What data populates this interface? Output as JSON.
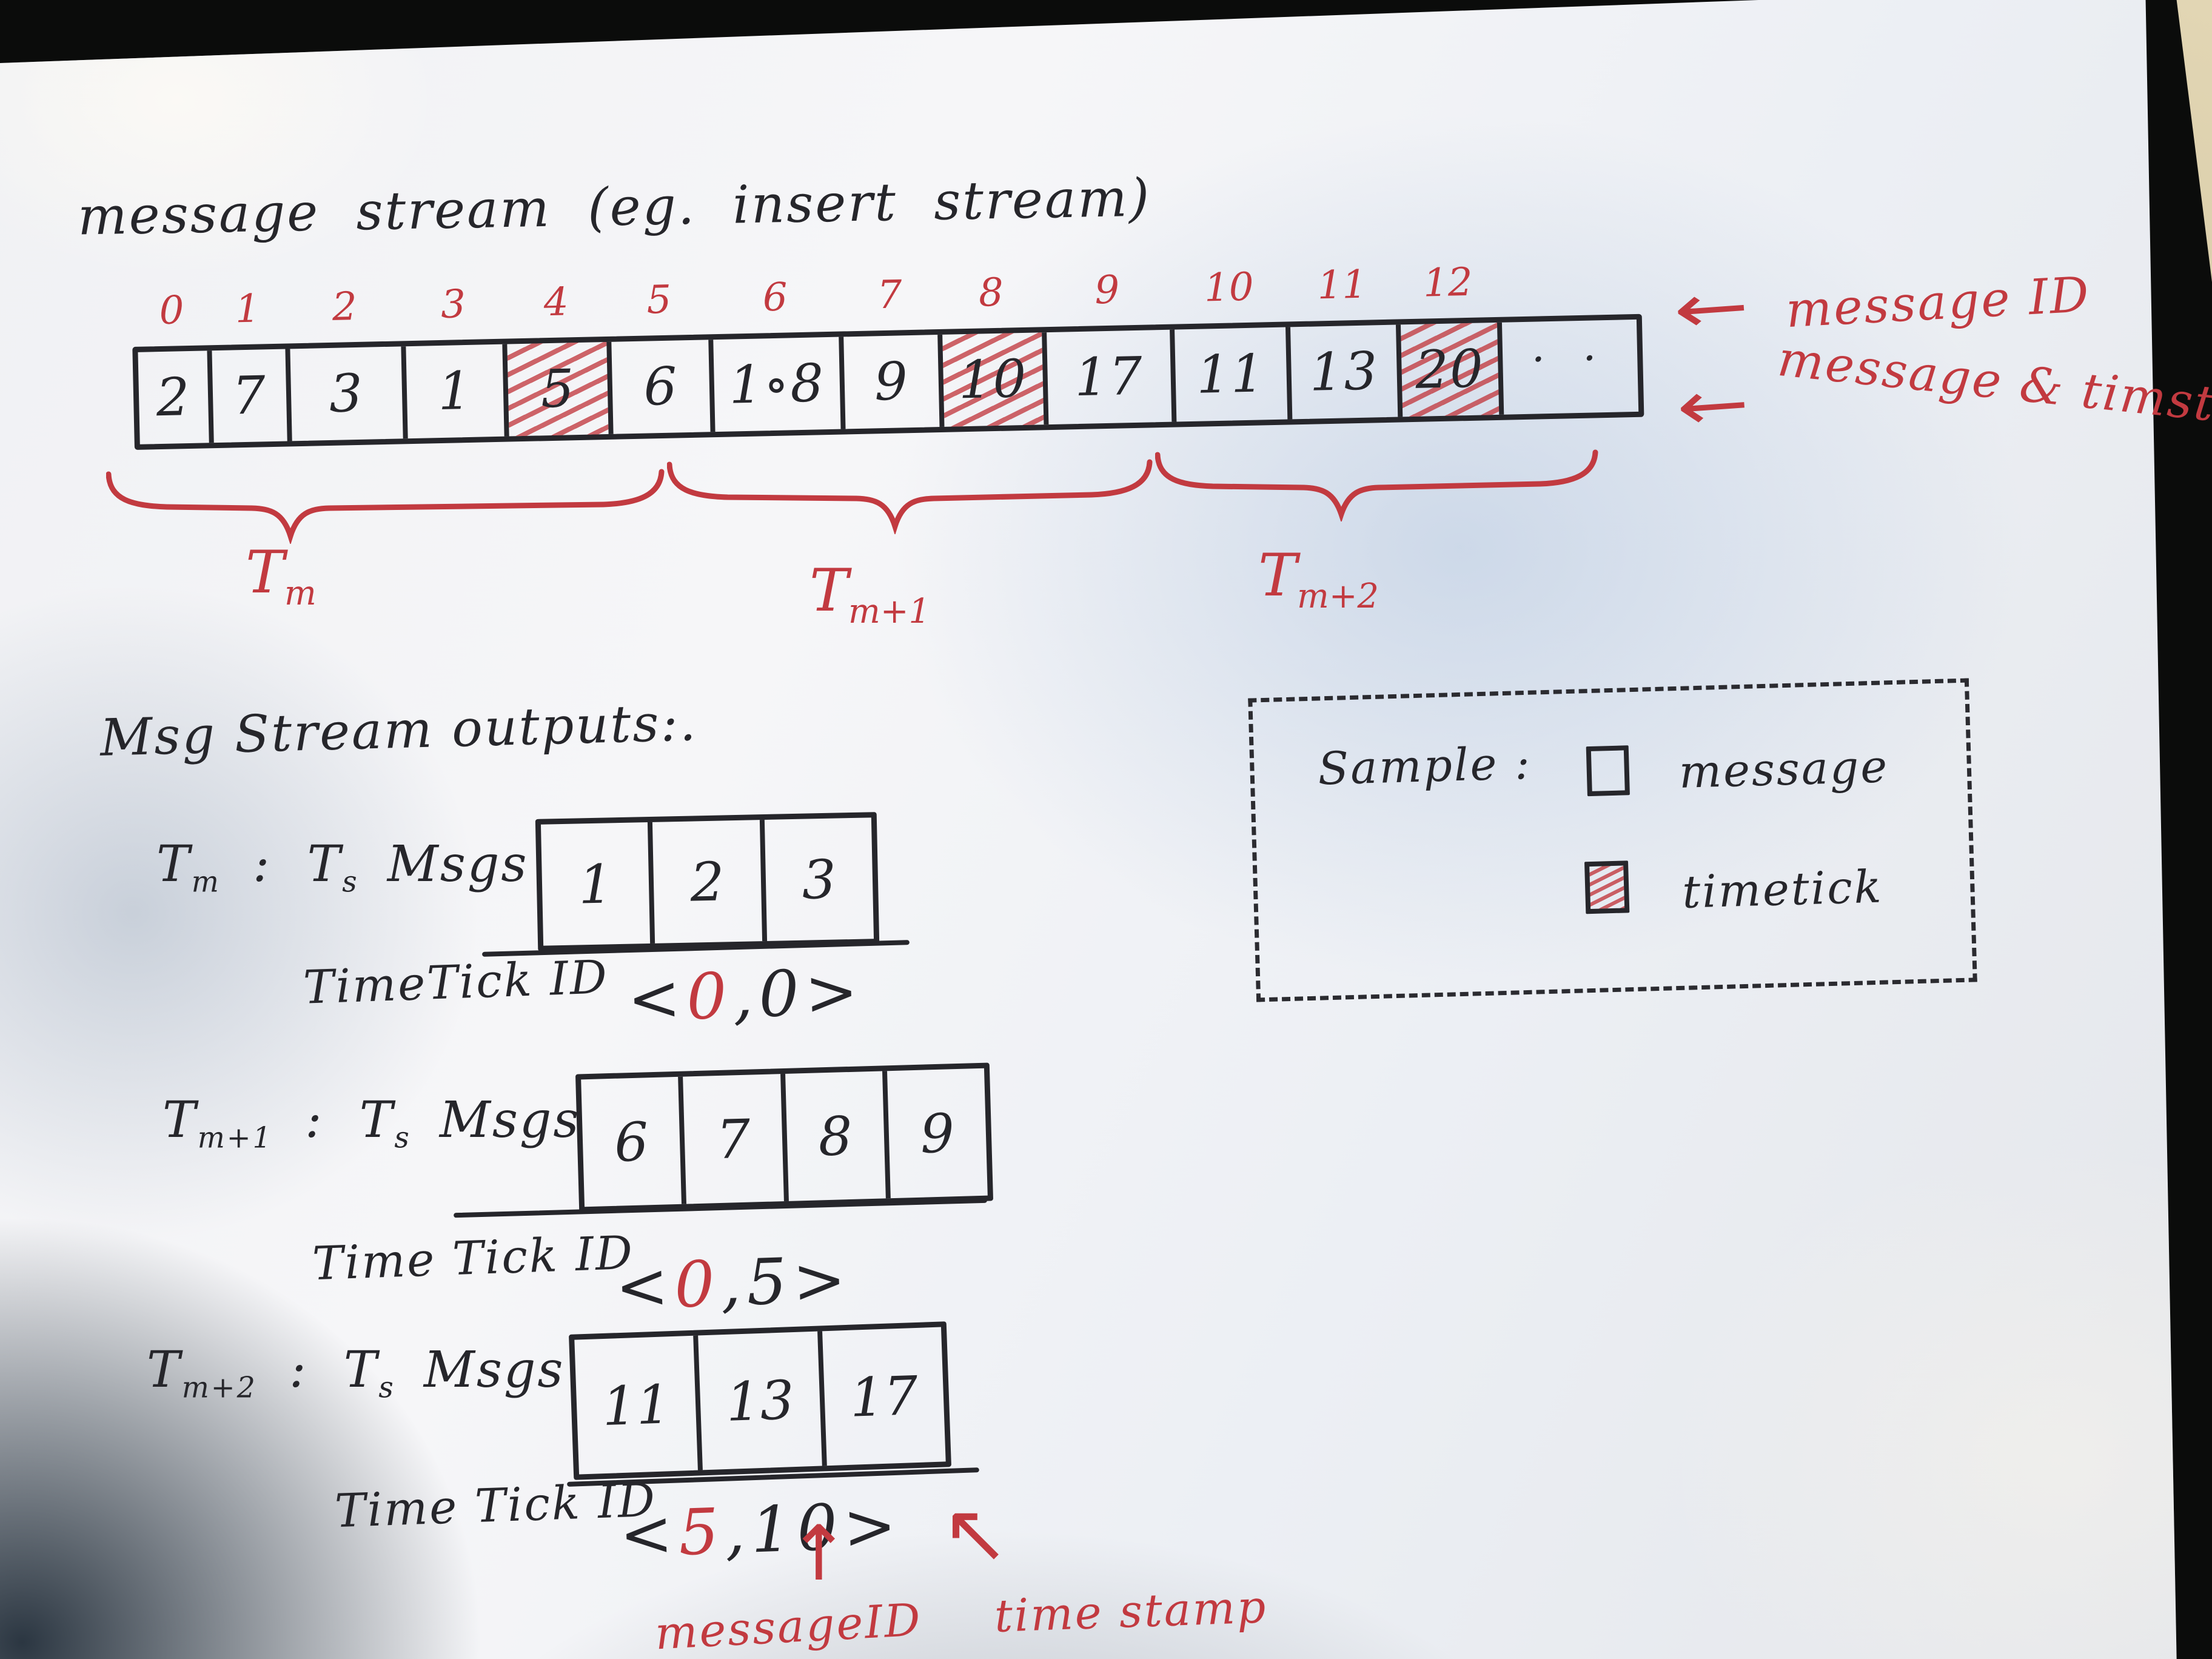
{
  "colors": {
    "ink_black": "#26262b",
    "ink_red": "#c23a40",
    "paper": "#f0f1f4",
    "background": "#0b0c0b"
  },
  "title": "message stream   (eg.  insert stream)",
  "stream": {
    "cells": [
      {
        "index": "0",
        "value": "2",
        "hatched": false
      },
      {
        "index": "1",
        "value": "7",
        "hatched": false
      },
      {
        "index": "2",
        "value": "3",
        "hatched": false
      },
      {
        "index": "3",
        "value": "1",
        "hatched": false
      },
      {
        "index": "4",
        "value": "5",
        "hatched": true
      },
      {
        "index": "5",
        "value": "6",
        "hatched": false
      },
      {
        "index": "6",
        "value": "1∘8",
        "hatched": false
      },
      {
        "index": "7",
        "value": "9",
        "hatched": false
      },
      {
        "index": "8",
        "value": "10",
        "hatched": true
      },
      {
        "index": "9",
        "value": "17",
        "hatched": false
      },
      {
        "index": "10",
        "value": "11",
        "hatched": false
      },
      {
        "index": "11",
        "value": "13",
        "hatched": false
      },
      {
        "index": "12",
        "value": "20",
        "hatched": true
      },
      {
        "index": "",
        "value": "· ·",
        "hatched": false
      }
    ],
    "arrow_top_glyph": "←",
    "arrow_top_label": "message ID",
    "arrow_bottom_glyph": "←",
    "arrow_bottom_label": "message & timstamp",
    "windows": [
      {
        "t": "T",
        "sub": "m"
      },
      {
        "t": "T",
        "sub": "m+1"
      },
      {
        "t": "T",
        "sub": "m+2"
      }
    ]
  },
  "outputs_heading": "Msg Stream outputs:.",
  "outputs": [
    {
      "t": "T",
      "t_sub": "m",
      "colon": ":",
      "ts": "T",
      "ts_sub": "s",
      "msgs_word": "Msgs",
      "msgs": [
        "1",
        "2",
        "3"
      ],
      "tick_label": "TimeTick ID",
      "lt": "<",
      "first": "0",
      "comma": ",",
      "second": "0",
      "gt": ">"
    },
    {
      "t": "T",
      "t_sub": "m+1",
      "colon": ":",
      "ts": "T",
      "ts_sub": "s",
      "msgs_word": "Msgs",
      "msgs": [
        "6",
        "7",
        "8",
        "9"
      ],
      "tick_label": "Time Tick ID",
      "lt": "<",
      "first": "0",
      "comma": ",",
      "second": "5",
      "gt": ">"
    },
    {
      "t": "T",
      "t_sub": "m+2",
      "colon": ":",
      "ts": "T",
      "ts_sub": "s",
      "msgs_word": "Msgs",
      "msgs": [
        "11",
        "13",
        "17"
      ],
      "tick_label": "Time Tick ID",
      "lt": "<",
      "first": "5",
      "comma": ",",
      "second": "10",
      "gt": ">"
    }
  ],
  "annotations": {
    "up_arrow": "↑",
    "diag_arrow": "↖",
    "message_id_label": "messageID",
    "timestamp_label": "time stamp"
  },
  "legend": {
    "title": "Sample :",
    "message_label": "message",
    "timetick_label": "timetick"
  }
}
